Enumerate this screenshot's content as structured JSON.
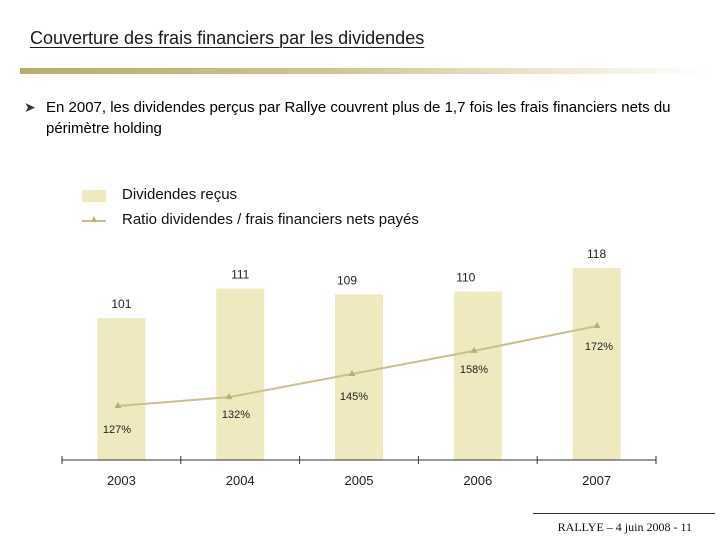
{
  "slide": {
    "title": "Couverture des frais financiers par les dividendes",
    "bullet_icon": "arrow-bullet-icon",
    "bullet_text": "En 2007, les dividendes perçus par Rallye couvrent plus de 1,7 fois les frais financiers nets du périmètre holding",
    "footer": "RALLYE – 4 juin 2008  -  11"
  },
  "colors": {
    "bar": "#efe9bf",
    "line": "#c9bf8f",
    "marker": "#b9ae76",
    "accent_rule": "#b8ac6a"
  },
  "chart_data": {
    "type": "bar",
    "categories": [
      "2003",
      "2004",
      "2005",
      "2006",
      "2007"
    ],
    "series": [
      {
        "name": "Dividendes reçus",
        "type": "bar",
        "values": [
          101,
          111,
          109,
          110,
          118
        ],
        "labels": [
          "101",
          "111",
          "109",
          "110",
          "118"
        ]
      },
      {
        "name": "Ratio dividendes / frais financiers nets payés",
        "type": "line",
        "values": [
          127,
          132,
          145,
          158,
          172
        ],
        "labels": [
          "127%",
          "132%",
          "145%",
          "158%",
          "172%"
        ]
      }
    ],
    "legend": {
      "position": "top-left"
    },
    "title": "",
    "xlabel": "",
    "ylabel": ""
  }
}
